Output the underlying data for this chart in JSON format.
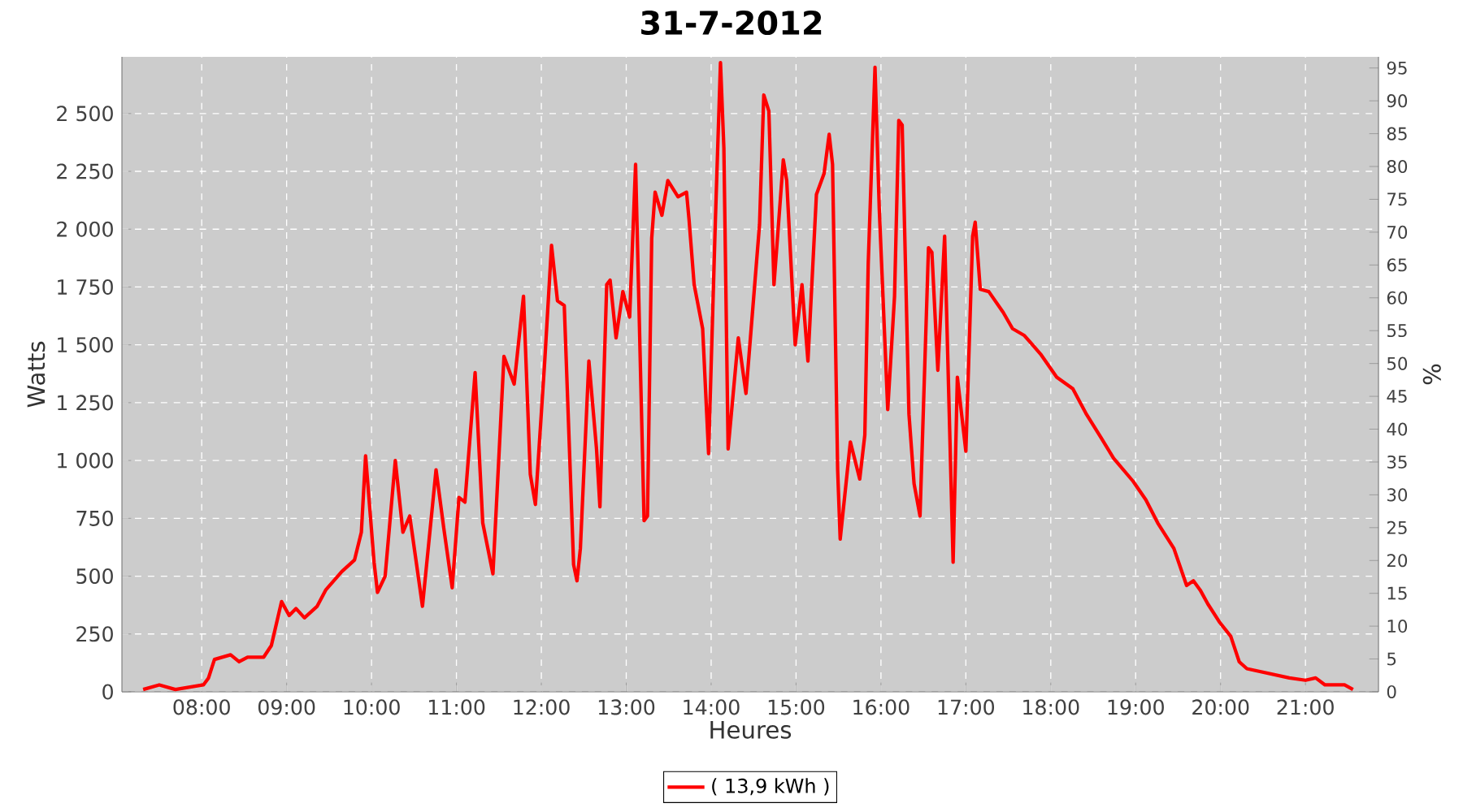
{
  "chart_data": {
    "type": "line",
    "title": "31-7-2012",
    "xlabel": "Heures",
    "ylabel": "Watts",
    "y2label": "%",
    "xlim": [
      7.06,
      21.86
    ],
    "xticks": [
      {
        "value": 8,
        "label": "08:00"
      },
      {
        "value": 9,
        "label": "09:00"
      },
      {
        "value": 10,
        "label": "10:00"
      },
      {
        "value": 11,
        "label": "11:00"
      },
      {
        "value": 12,
        "label": "12:00"
      },
      {
        "value": 13,
        "label": "13:00"
      },
      {
        "value": 14,
        "label": "14:00"
      },
      {
        "value": 15,
        "label": "15:00"
      },
      {
        "value": 16,
        "label": "16:00"
      },
      {
        "value": 17,
        "label": "17:00"
      },
      {
        "value": 18,
        "label": "18:00"
      },
      {
        "value": 19,
        "label": "19:00"
      },
      {
        "value": 20,
        "label": "20:00"
      },
      {
        "value": 21,
        "label": "21:00"
      }
    ],
    "ylim": [
      0,
      2745
    ],
    "yticks": [
      0,
      250,
      500,
      750,
      {
        "value": 1000,
        "label": "1 000"
      },
      {
        "value": 1250,
        "label": "1 250"
      },
      {
        "value": 1500,
        "label": "1 500"
      },
      {
        "value": 1750,
        "label": "1 750"
      },
      {
        "value": 2000,
        "label": "2 000"
      },
      {
        "value": 2250,
        "label": "2 250"
      },
      {
        "value": 2500,
        "label": "2 500"
      }
    ],
    "y2lim": [
      0,
      96.7
    ],
    "y2ticks": [
      0,
      5,
      10,
      15,
      20,
      25,
      30,
      35,
      40,
      45,
      50,
      55,
      60,
      65,
      70,
      75,
      80,
      85,
      90,
      95
    ],
    "grid": true,
    "legend": "bottom",
    "series": [
      {
        "name": "( 13,9 kWh )",
        "color": "#ff0000",
        "x": [
          7.31,
          7.5,
          7.69,
          8.02,
          8.08,
          8.15,
          8.34,
          8.44,
          8.54,
          8.73,
          8.82,
          8.94,
          9.03,
          9.11,
          9.21,
          9.36,
          9.46,
          9.65,
          9.8,
          9.88,
          9.93,
          10.03,
          10.07,
          10.16,
          10.28,
          10.37,
          10.45,
          10.6,
          10.76,
          10.85,
          10.95,
          11.03,
          11.1,
          11.22,
          11.31,
          11.43,
          11.56,
          11.68,
          11.79,
          11.87,
          11.93,
          12.04,
          12.12,
          12.19,
          12.27,
          12.38,
          12.42,
          12.46,
          12.56,
          12.65,
          12.69,
          12.77,
          12.81,
          12.88,
          12.96,
          13.04,
          13.11,
          13.21,
          13.25,
          13.3,
          13.34,
          13.42,
          13.49,
          13.61,
          13.71,
          13.74,
          13.8,
          13.9,
          13.97,
          14.05,
          14.11,
          14.15,
          14.2,
          14.32,
          14.41,
          14.57,
          14.62,
          14.68,
          14.74,
          14.85,
          14.89,
          14.99,
          15.07,
          15.14,
          15.24,
          15.33,
          15.39,
          15.43,
          15.49,
          15.52,
          15.64,
          15.75,
          15.81,
          15.85,
          15.93,
          15.98,
          16.08,
          16.16,
          16.21,
          16.25,
          16.33,
          16.39,
          16.46,
          16.56,
          16.6,
          16.67,
          16.75,
          16.85,
          16.9,
          17.0,
          17.08,
          17.11,
          17.17,
          17.27,
          17.44,
          17.55,
          17.69,
          17.88,
          18.07,
          18.26,
          18.42,
          18.59,
          18.74,
          18.97,
          19.12,
          19.26,
          19.45,
          19.6,
          19.68,
          19.76,
          19.85,
          19.99,
          20.12,
          20.22,
          20.31,
          20.56,
          20.81,
          21.0,
          21.12,
          21.23,
          21.46,
          21.56
        ],
        "values": [
          10,
          30,
          10,
          30,
          60,
          140,
          160,
          130,
          150,
          150,
          200,
          390,
          330,
          360,
          320,
          370,
          440,
          520,
          570,
          690,
          1020,
          560,
          430,
          500,
          1000,
          690,
          760,
          370,
          960,
          710,
          450,
          840,
          820,
          1380,
          730,
          510,
          1450,
          1330,
          1710,
          940,
          810,
          1430,
          1930,
          1690,
          1670,
          550,
          480,
          620,
          1430,
          1050,
          800,
          1760,
          1780,
          1530,
          1730,
          1620,
          2280,
          740,
          760,
          1960,
          2160,
          2060,
          2210,
          2140,
          2160,
          2040,
          1760,
          1570,
          1030,
          2040,
          2720,
          2350,
          1050,
          1530,
          1290,
          2020,
          2580,
          2510,
          1760,
          2300,
          2210,
          1500,
          1760,
          1430,
          2150,
          2240,
          2410,
          2280,
          960,
          660,
          1080,
          920,
          1110,
          1850,
          2700,
          2090,
          1220,
          1710,
          2470,
          2450,
          1200,
          900,
          760,
          1920,
          1900,
          1390,
          1970,
          560,
          1360,
          1040,
          1970,
          2030,
          1740,
          1730,
          1640,
          1570,
          1540,
          1460,
          1360,
          1310,
          1200,
          1100,
          1010,
          910,
          830,
          730,
          620,
          460,
          480,
          440,
          380,
          300,
          240,
          130,
          100,
          80,
          60,
          50,
          60,
          30,
          30,
          10
        ]
      }
    ]
  }
}
